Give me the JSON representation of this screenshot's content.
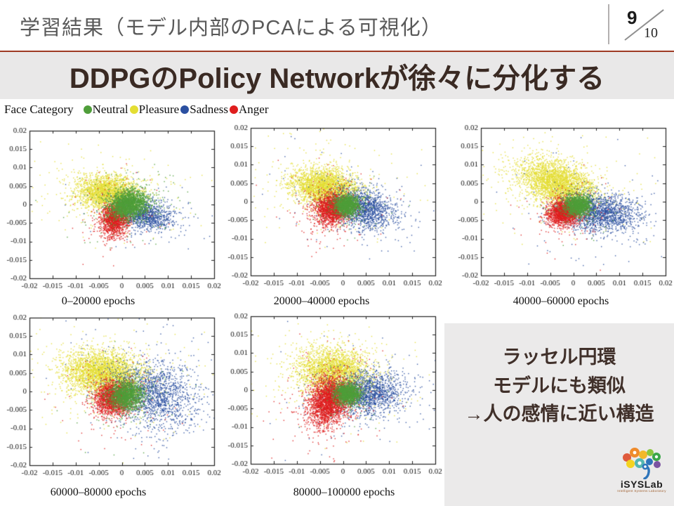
{
  "header": {
    "title": "学習結果（モデル内部のPCAによる可視化）",
    "page_current": "9",
    "page_total": "10"
  },
  "subtitle": "DDPGのPolicy Networkが徐々に分化する",
  "legend": {
    "label": "Face Category",
    "items": [
      {
        "name": "Neutral",
        "color": "#4f9e3a"
      },
      {
        "name": "Pleasure",
        "color": "#e4de33"
      },
      {
        "name": "Sadness",
        "color": "#2b50a1"
      },
      {
        "name": "Anger",
        "color": "#df1e1e"
      }
    ]
  },
  "info_box": {
    "lines": [
      "ラッセル円環",
      "モデルにも類似",
      "→人の感情に近い構造"
    ]
  },
  "logo": {
    "name": "iSYSLab",
    "tagline": "Intelligent Systems Laboratory"
  },
  "chart_data": [
    {
      "type": "scatter",
      "title": "0–20000 epochs",
      "xlabel": "",
      "ylabel": "",
      "xlim": [
        -0.02,
        0.02
      ],
      "ylim": [
        -0.02,
        0.02
      ],
      "tick_step": 0.005,
      "grid": false,
      "legend_position": "shared-top-left",
      "clusters": [
        {
          "name": "Pleasure",
          "color": "#e4de33",
          "n": 2400,
          "cx": -0.003,
          "cy": 0.003,
          "sx": 0.0035,
          "sy": 0.0024,
          "rho": -0.1
        },
        {
          "name": "Sadness",
          "color": "#2b50a1",
          "n": 1100,
          "cx": 0.005,
          "cy": -0.003,
          "sx": 0.003,
          "sy": 0.002,
          "rho": -0.2
        },
        {
          "name": "Anger",
          "color": "#df1e1e",
          "n": 1500,
          "cx": -0.0015,
          "cy": -0.004,
          "sx": 0.0015,
          "sy": 0.0022,
          "rho": 0.1
        },
        {
          "name": "Neutral",
          "color": "#4f9e3a",
          "n": 2200,
          "cx": 0.0014,
          "cy": 0.0,
          "sx": 0.0022,
          "sy": 0.0019,
          "rho": 0.1
        }
      ]
    },
    {
      "type": "scatter",
      "title": "20000–40000 epochs",
      "xlabel": "",
      "ylabel": "",
      "xlim": [
        -0.02,
        0.02
      ],
      "ylim": [
        -0.02,
        0.02
      ],
      "tick_step": 0.005,
      "grid": false,
      "legend_position": "shared-top-left",
      "clusters": [
        {
          "name": "Pleasure",
          "color": "#e4de33",
          "n": 2600,
          "cx": -0.004,
          "cy": 0.004,
          "sx": 0.0035,
          "sy": 0.0025,
          "rho": -0.15
        },
        {
          "name": "Sadness",
          "color": "#2b50a1",
          "n": 1500,
          "cx": 0.0045,
          "cy": -0.002,
          "sx": 0.0035,
          "sy": 0.0028,
          "rho": -0.3
        },
        {
          "name": "Anger",
          "color": "#df1e1e",
          "n": 1700,
          "cx": -0.0025,
          "cy": -0.002,
          "sx": 0.0019,
          "sy": 0.0022,
          "rho": 0.1
        },
        {
          "name": "Neutral",
          "color": "#4f9e3a",
          "n": 1400,
          "cx": 0.0008,
          "cy": -0.001,
          "sx": 0.0014,
          "sy": 0.0014,
          "rho": 0.0
        }
      ]
    },
    {
      "type": "scatter",
      "title": "40000–60000 epochs",
      "xlabel": "",
      "ylabel": "",
      "xlim": [
        -0.02,
        0.02
      ],
      "ylim": [
        -0.02,
        0.02
      ],
      "tick_step": 0.005,
      "grid": false,
      "legend_position": "shared-top-left",
      "clusters": [
        {
          "name": "Pleasure",
          "color": "#e4de33",
          "n": 3000,
          "cx": -0.0035,
          "cy": 0.005,
          "sx": 0.004,
          "sy": 0.0032,
          "rho": -0.35
        },
        {
          "name": "Sadness",
          "color": "#2b50a1",
          "n": 1700,
          "cx": 0.006,
          "cy": -0.003,
          "sx": 0.0042,
          "sy": 0.0026,
          "rho": -0.15
        },
        {
          "name": "Anger",
          "color": "#df1e1e",
          "n": 1700,
          "cx": -0.002,
          "cy": -0.003,
          "sx": 0.0018,
          "sy": 0.0018,
          "rho": 0.15
        },
        {
          "name": "Neutral",
          "color": "#4f9e3a",
          "n": 1400,
          "cx": 0.001,
          "cy": -0.001,
          "sx": 0.0014,
          "sy": 0.0014,
          "rho": 0.0
        }
      ]
    },
    {
      "type": "scatter",
      "title": "60000–80000 epochs",
      "xlabel": "",
      "ylabel": "",
      "xlim": [
        -0.02,
        0.02
      ],
      "ylim": [
        -0.02,
        0.02
      ],
      "tick_step": 0.005,
      "grid": false,
      "legend_position": "shared-top-left",
      "clusters": [
        {
          "name": "Pleasure",
          "color": "#e4de33",
          "n": 3000,
          "cx": -0.004,
          "cy": 0.005,
          "sx": 0.0042,
          "sy": 0.003,
          "rho": -0.1
        },
        {
          "name": "Sadness",
          "color": "#2b50a1",
          "n": 1700,
          "cx": 0.007,
          "cy": -0.001,
          "sx": 0.0045,
          "sy": 0.0045,
          "rho": -0.2
        },
        {
          "name": "Anger",
          "color": "#df1e1e",
          "n": 1800,
          "cx": -0.002,
          "cy": -0.002,
          "sx": 0.002,
          "sy": 0.0023,
          "rho": 0.1
        },
        {
          "name": "Neutral",
          "color": "#4f9e3a",
          "n": 1600,
          "cx": 0.001,
          "cy": -0.001,
          "sx": 0.0018,
          "sy": 0.002,
          "rho": 0.0
        }
      ]
    },
    {
      "type": "scatter",
      "title": "80000–100000 epochs",
      "xlabel": "",
      "ylabel": "",
      "xlim": [
        -0.02,
        0.02
      ],
      "ylim": [
        -0.02,
        0.02
      ],
      "tick_step": 0.005,
      "grid": false,
      "legend_position": "shared-top-left",
      "clusters": [
        {
          "name": "Pleasure",
          "color": "#e4de33",
          "n": 2600,
          "cx": -0.002,
          "cy": 0.005,
          "sx": 0.004,
          "sy": 0.0032,
          "rho": -0.1
        },
        {
          "name": "Sadness",
          "color": "#2b50a1",
          "n": 1600,
          "cx": 0.0055,
          "cy": -0.001,
          "sx": 0.004,
          "sy": 0.003,
          "rho": 0.1
        },
        {
          "name": "Anger",
          "color": "#df1e1e",
          "n": 2600,
          "cx": -0.003,
          "cy": -0.003,
          "sx": 0.0022,
          "sy": 0.0032,
          "rho": 0.2
        },
        {
          "name": "Neutral",
          "color": "#4f9e3a",
          "n": 1400,
          "cx": 0.001,
          "cy": -0.001,
          "sx": 0.0014,
          "sy": 0.0014,
          "rho": 0.0
        }
      ]
    }
  ]
}
